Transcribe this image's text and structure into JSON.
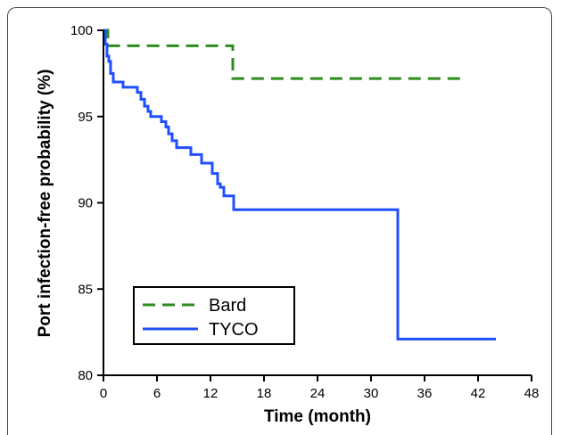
{
  "chart_data": {
    "type": "line",
    "title": "",
    "xlabel": "Time (month)",
    "ylabel": "Port infection-free probability (%)",
    "xlim": [
      0,
      48
    ],
    "ylim": [
      80,
      100
    ],
    "xticks": [
      0,
      6,
      12,
      18,
      24,
      30,
      36,
      42,
      48
    ],
    "yticks": [
      80,
      85,
      90,
      95,
      100
    ],
    "step": true,
    "grid": false,
    "legend_position": "bottom-left",
    "series": [
      {
        "name": "Bard",
        "style": "dashed",
        "color": "#2e8b1f",
        "x": [
          0,
          0.5,
          14.5,
          40
        ],
        "y": [
          100,
          99.1,
          97.2,
          97.2
        ]
      },
      {
        "name": "TYCO",
        "style": "solid",
        "color": "#1f4fff",
        "x": [
          0,
          0.2,
          0.4,
          0.6,
          0.8,
          1.1,
          2.2,
          3.8,
          4.2,
          4.6,
          5.0,
          5.3,
          6.5,
          7.0,
          7.3,
          7.7,
          8.2,
          9.8,
          11.0,
          12.2,
          12.8,
          13.1,
          13.5,
          14.6,
          33.0,
          44.0
        ],
        "y": [
          100,
          99.2,
          98.5,
          98.2,
          97.5,
          97.0,
          96.7,
          96.4,
          96.0,
          95.6,
          95.3,
          95.0,
          94.7,
          94.4,
          94.0,
          93.6,
          93.2,
          92.8,
          92.3,
          91.7,
          91.1,
          90.9,
          90.4,
          89.6,
          82.1,
          82.1
        ]
      }
    ]
  }
}
